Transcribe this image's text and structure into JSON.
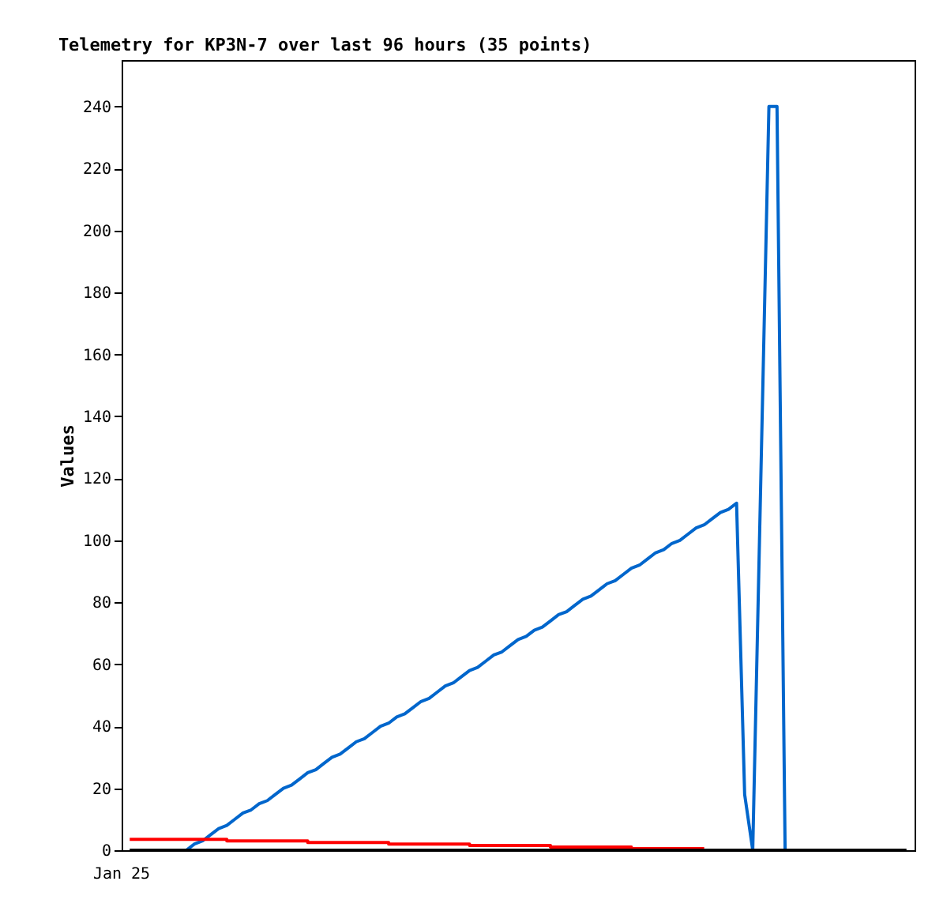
{
  "chart_data": {
    "type": "line",
    "title": "Telemetry for KP3N-7 over last 96 hours (35 points)",
    "ylabel": "Values",
    "annotations": [
      "Jan 25"
    ],
    "categories": [
      null,
      null,
      null,
      null,
      null,
      null,
      null,
      null,
      null,
      null,
      null,
      null,
      null,
      null,
      null,
      null,
      null,
      null,
      null,
      null,
      null,
      null,
      null,
      null,
      null,
      null,
      null,
      null,
      null,
      null,
      null,
      null,
      null,
      null,
      null,
      null,
      null,
      null,
      null,
      null,
      null,
      null,
      null,
      null,
      null,
      null,
      null,
      null,
      null,
      null,
      null,
      null,
      null,
      null,
      null,
      null,
      null,
      null,
      null,
      null,
      null,
      null,
      null,
      null,
      null,
      null,
      null,
      null,
      null,
      null,
      null,
      null,
      null,
      null,
      null,
      null,
      null,
      null,
      null,
      null,
      null,
      null,
      null,
      null,
      null,
      null,
      null,
      null,
      null,
      null,
      null,
      null,
      null,
      null,
      null,
      null,
      null
    ],
    "ylim": [
      0,
      255
    ],
    "yticks": [
      0,
      20,
      40,
      60,
      80,
      100,
      120,
      140,
      160,
      180,
      200,
      220,
      240
    ],
    "grid": false,
    "series": [
      {
        "color": "#0066cc",
        "values": [
          null,
          null,
          null,
          null,
          null,
          null,
          null,
          0,
          2,
          3,
          5,
          7,
          8,
          10,
          12,
          13,
          15,
          16,
          18,
          20,
          21,
          23,
          25,
          26,
          28,
          30,
          31,
          33,
          35,
          36,
          38,
          40,
          41,
          43,
          44,
          46,
          48,
          49,
          51,
          53,
          54,
          56,
          58,
          59,
          61,
          63,
          64,
          66,
          68,
          69,
          71,
          72,
          74,
          76,
          77,
          79,
          81,
          82,
          84,
          86,
          87,
          89,
          91,
          92,
          94,
          96,
          97,
          99,
          100,
          102,
          104,
          105,
          107,
          109,
          110,
          112,
          18,
          0,
          120,
          240,
          240,
          0,
          null,
          null,
          null,
          null,
          null,
          null,
          null,
          null,
          null,
          null,
          null,
          null,
          null,
          null,
          null
        ]
      },
      {
        "type": "step",
        "color": "#ff0000",
        "values": [
          3.5,
          3.5,
          3.5,
          3.5,
          3.5,
          3.5,
          3.5,
          3.5,
          3.5,
          3.5,
          3.5,
          3.5,
          3.0,
          3.0,
          3.0,
          3.0,
          3.0,
          3.0,
          3.0,
          3.0,
          3.0,
          3.0,
          2.5,
          2.5,
          2.5,
          2.5,
          2.5,
          2.5,
          2.5,
          2.5,
          2.5,
          2.5,
          2.0,
          2.0,
          2.0,
          2.0,
          2.0,
          2.0,
          2.0,
          2.0,
          2.0,
          2.0,
          1.5,
          1.5,
          1.5,
          1.5,
          1.5,
          1.5,
          1.5,
          1.5,
          1.5,
          1.5,
          1.0,
          1.0,
          1.0,
          1.0,
          1.0,
          1.0,
          1.0,
          1.0,
          1.0,
          1.0,
          0.5,
          0.5,
          0.5,
          0.5,
          0.5,
          0.5,
          0.5,
          0.5,
          0.5,
          0.5,
          null,
          null,
          null,
          null,
          null,
          null,
          null,
          null,
          null,
          null,
          null,
          null,
          null,
          null,
          null,
          null,
          null,
          null,
          null,
          null,
          null,
          null,
          null,
          null,
          null
        ]
      },
      {
        "color": "#000000",
        "values": [
          0,
          0,
          0,
          0,
          0,
          0,
          0,
          0,
          0,
          0,
          0,
          0,
          0,
          0,
          0,
          0,
          0,
          0,
          0,
          0,
          0,
          0,
          0,
          0,
          0,
          0,
          0,
          0,
          0,
          0,
          0,
          0,
          0,
          0,
          0,
          0,
          0,
          0,
          0,
          0,
          0,
          0,
          0,
          0,
          0,
          0,
          0,
          0,
          0,
          0,
          0,
          0,
          0,
          0,
          0,
          0,
          0,
          0,
          0,
          0,
          0,
          0,
          0,
          0,
          0,
          0,
          0,
          0,
          0,
          0,
          0,
          0,
          0,
          0,
          0,
          0,
          0,
          0,
          0,
          0,
          0,
          0,
          0,
          0,
          0,
          0,
          0,
          0,
          0,
          0,
          0,
          0,
          0,
          0,
          0,
          0,
          0
        ]
      }
    ]
  }
}
